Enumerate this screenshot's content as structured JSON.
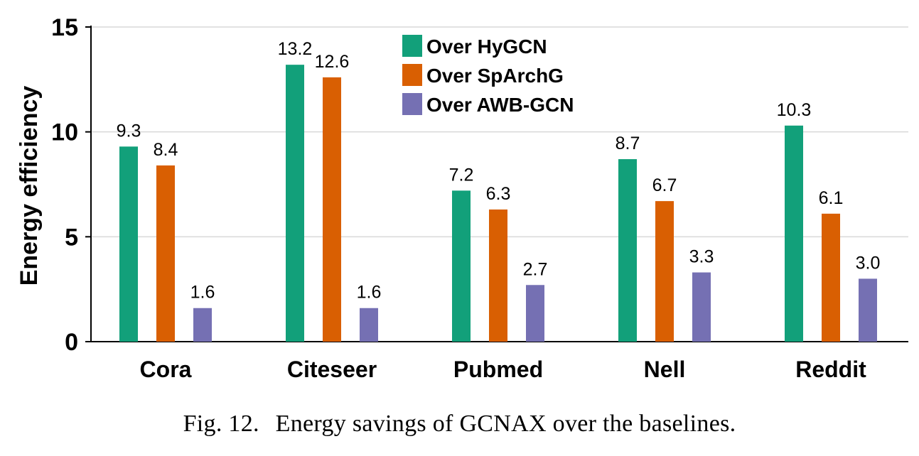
{
  "chart_data": {
    "type": "bar",
    "title": "",
    "xlabel": "",
    "ylabel": "Energy efficiency",
    "ylim": [
      0,
      15
    ],
    "yticks": [
      0,
      5,
      10,
      15
    ],
    "grid": true,
    "legend_position": "top-center",
    "categories": [
      "Cora",
      "Citeseer",
      "Pubmed",
      "Nell",
      "Reddit"
    ],
    "series": [
      {
        "name": "Over HyGCN",
        "color": "#12a07a",
        "values": [
          9.3,
          13.2,
          7.2,
          8.7,
          10.3
        ],
        "labels": [
          "9.3",
          "13.2",
          "7.2",
          "8.7",
          "10.3"
        ]
      },
      {
        "name": "Over SpArchG",
        "color": "#d95f02",
        "values": [
          8.4,
          12.6,
          6.3,
          6.7,
          6.1
        ],
        "labels": [
          "8.4",
          "12.6",
          "6.3",
          "6.7",
          "6.1"
        ]
      },
      {
        "name": "Over AWB-GCN",
        "color": "#7570b3",
        "values": [
          1.6,
          1.6,
          2.7,
          3.3,
          3.0
        ],
        "labels": [
          "1.6",
          "1.6",
          "2.7",
          "3.3",
          "3.0"
        ]
      }
    ]
  },
  "caption": {
    "label": "Fig. 12.",
    "text": "Energy savings of GCNAX over the baselines."
  }
}
